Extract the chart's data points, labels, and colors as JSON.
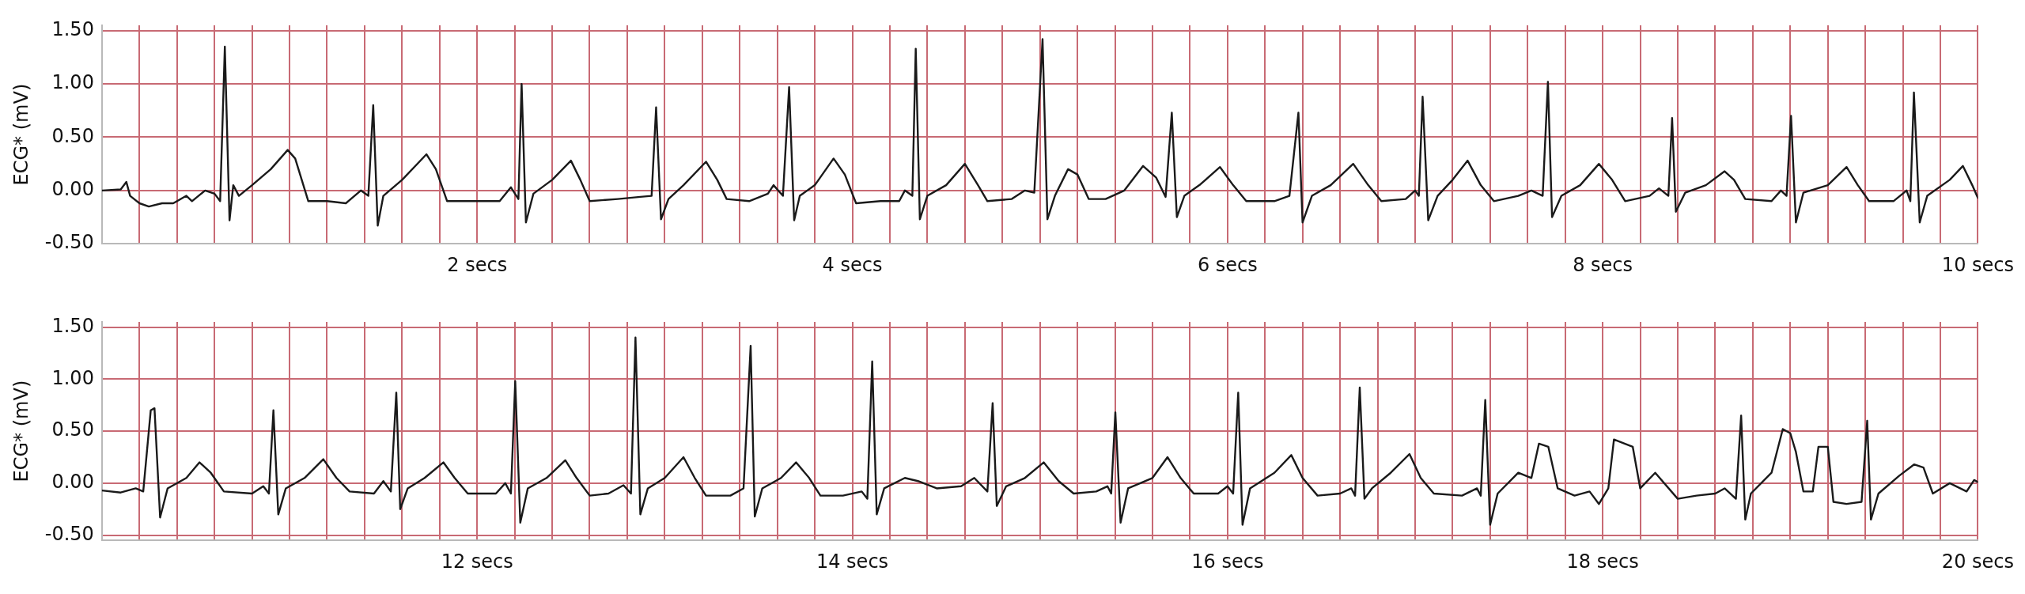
{
  "chart_data": [
    {
      "type": "line",
      "ylabel": "ECG* (mV)",
      "xlim": [
        0,
        10
      ],
      "ylim": [
        -0.5,
        1.55
      ],
      "grid": true,
      "yticks": [
        {
          "value": -0.5,
          "label": "-0.50"
        },
        {
          "value": 0,
          "label": "0.00"
        },
        {
          "value": 0.5,
          "label": "0.50"
        },
        {
          "value": 1,
          "label": "1.00"
        },
        {
          "value": 1.5,
          "label": "1.50"
        }
      ],
      "xticks": [
        {
          "value": 0,
          "label": null
        },
        {
          "value": 0.2,
          "label": null
        },
        {
          "value": 0.4,
          "label": null
        },
        {
          "value": 0.6,
          "label": null
        },
        {
          "value": 0.8,
          "label": null
        },
        {
          "value": 1,
          "label": null
        },
        {
          "value": 1.2,
          "label": null
        },
        {
          "value": 1.4,
          "label": null
        },
        {
          "value": 1.6,
          "label": null
        },
        {
          "value": 1.8,
          "label": null
        },
        {
          "value": 2,
          "label": "2 secs"
        },
        {
          "value": 2.2,
          "label": null
        },
        {
          "value": 2.4,
          "label": null
        },
        {
          "value": 2.6,
          "label": null
        },
        {
          "value": 2.8,
          "label": null
        },
        {
          "value": 3,
          "label": null
        },
        {
          "value": 3.2,
          "label": null
        },
        {
          "value": 3.4,
          "label": null
        },
        {
          "value": 3.6,
          "label": null
        },
        {
          "value": 3.8,
          "label": null
        },
        {
          "value": 4,
          "label": "4 secs"
        },
        {
          "value": 4.2,
          "label": null
        },
        {
          "value": 4.4,
          "label": null
        },
        {
          "value": 4.6,
          "label": null
        },
        {
          "value": 4.8,
          "label": null
        },
        {
          "value": 5,
          "label": null
        },
        {
          "value": 5.2,
          "label": null
        },
        {
          "value": 5.4,
          "label": null
        },
        {
          "value": 5.6,
          "label": null
        },
        {
          "value": 5.8,
          "label": null
        },
        {
          "value": 6,
          "label": "6 secs"
        },
        {
          "value": 6.2,
          "label": null
        },
        {
          "value": 6.4,
          "label": null
        },
        {
          "value": 6.6,
          "label": null
        },
        {
          "value": 6.8,
          "label": null
        },
        {
          "value": 7,
          "label": null
        },
        {
          "value": 7.2,
          "label": null
        },
        {
          "value": 7.4,
          "label": null
        },
        {
          "value": 7.6,
          "label": null
        },
        {
          "value": 7.8,
          "label": null
        },
        {
          "value": 8,
          "label": "8 secs"
        },
        {
          "value": 8.2,
          "label": null
        },
        {
          "value": 8.4,
          "label": null
        },
        {
          "value": 8.6,
          "label": null
        },
        {
          "value": 8.8,
          "label": null
        },
        {
          "value": 9,
          "label": null
        },
        {
          "value": 9.2,
          "label": null
        },
        {
          "value": 9.4,
          "label": null
        },
        {
          "value": 9.6,
          "label": null
        },
        {
          "value": 9.8,
          "label": null
        },
        {
          "value": 10,
          "label": "10 secs"
        }
      ],
      "series": [
        {
          "color": "#1a1a1a",
          "x": [
            0,
            0.1,
            0.13,
            0.15,
            0.2,
            0.25,
            0.32,
            0.38,
            0.45,
            0.48,
            0.55,
            0.6,
            0.63,
            0.655,
            0.68,
            0.7,
            0.73,
            0.8,
            0.9,
            0.99,
            1.03,
            1.1,
            1.2,
            1.3,
            1.38,
            1.42,
            1.446,
            1.47,
            1.5,
            1.6,
            1.73,
            1.78,
            1.84,
            2,
            2.12,
            2.18,
            2.22,
            2.237,
            2.26,
            2.3,
            2.4,
            2.5,
            2.55,
            2.6,
            2.75,
            2.87,
            2.93,
            2.954,
            2.98,
            3.02,
            3.1,
            3.22,
            3.28,
            3.33,
            3.45,
            3.55,
            3.58,
            3.63,
            3.663,
            3.69,
            3.72,
            3.8,
            3.9,
            3.96,
            4.02,
            4.15,
            4.25,
            4.28,
            4.32,
            4.338,
            4.36,
            4.4,
            4.5,
            4.6,
            4.67,
            4.72,
            4.85,
            4.92,
            4.97,
            5.014,
            5.04,
            5.08,
            5.15,
            5.2,
            5.26,
            5.35,
            5.45,
            5.55,
            5.62,
            5.67,
            5.703,
            5.73,
            5.77,
            5.85,
            5.96,
            6.03,
            6.1,
            6.25,
            6.33,
            6.378,
            6.4,
            6.45,
            6.55,
            6.67,
            6.75,
            6.82,
            6.95,
            7,
            7.02,
            7.04,
            7.07,
            7.12,
            7.2,
            7.28,
            7.35,
            7.42,
            7.55,
            7.62,
            7.68,
            7.708,
            7.73,
            7.78,
            7.88,
            7.98,
            8.05,
            8.12,
            8.25,
            8.3,
            8.35,
            8.37,
            8.39,
            8.44,
            8.55,
            8.65,
            8.7,
            8.76,
            8.9,
            8.95,
            8.98,
            9.004,
            9.03,
            9.07,
            9.2,
            9.3,
            9.36,
            9.42,
            9.55,
            9.62,
            9.64,
            9.659,
            9.69,
            9.73,
            9.85,
            9.92,
            9.97,
            10
          ],
          "values": [
            0,
            0.01,
            0.08,
            -0.05,
            -0.12,
            -0.15,
            -0.12,
            -0.12,
            -0.05,
            -0.1,
            0,
            -0.03,
            -0.1,
            1.35,
            -0.28,
            0.05,
            -0.05,
            0.05,
            0.2,
            0.38,
            0.3,
            -0.1,
            -0.1,
            -0.12,
            0,
            -0.05,
            0.8,
            -0.33,
            -0.05,
            0.1,
            0.34,
            0.2,
            -0.1,
            -0.1,
            -0.1,
            0.03,
            -0.08,
            1,
            -0.3,
            -0.03,
            0.1,
            0.28,
            0.1,
            -0.1,
            -0.08,
            -0.06,
            -0.05,
            0.78,
            -0.27,
            -0.08,
            0.05,
            0.27,
            0.1,
            -0.08,
            -0.1,
            -0.03,
            0.05,
            -0.05,
            0.97,
            -0.28,
            -0.05,
            0.05,
            0.3,
            0.15,
            -0.12,
            -0.1,
            -0.1,
            0,
            -0.05,
            1.33,
            -0.27,
            -0.05,
            0.05,
            0.25,
            0.05,
            -0.1,
            -0.08,
            0,
            -0.02,
            1.42,
            -0.27,
            -0.05,
            0.2,
            0.15,
            -0.08,
            -0.08,
            0,
            0.23,
            0.12,
            -0.06,
            0.73,
            -0.25,
            -0.05,
            0.05,
            0.22,
            0.05,
            -0.1,
            -0.1,
            -0.05,
            0.73,
            -0.3,
            -0.05,
            0.05,
            0.25,
            0.05,
            -0.1,
            -0.08,
            0,
            -0.05,
            0.88,
            -0.28,
            -0.05,
            0.1,
            0.28,
            0.05,
            -0.1,
            -0.05,
            0,
            -0.05,
            1.02,
            -0.25,
            -0.05,
            0.05,
            0.25,
            0.1,
            -0.1,
            -0.05,
            0.02,
            -0.05,
            0.68,
            -0.2,
            -0.02,
            0.05,
            0.18,
            0.1,
            -0.08,
            -0.1,
            0,
            -0.05,
            0.7,
            -0.3,
            -0.02,
            0.05,
            0.22,
            0.05,
            -0.1,
            -0.1,
            0,
            -0.1,
            0.92,
            -0.3,
            -0.05,
            0.1,
            0.23,
            0.05,
            -0.07
          ]
        }
      ]
    },
    {
      "type": "line",
      "ylabel": "ECG* (mV)",
      "xlim": [
        10,
        20
      ],
      "ylim": [
        -0.55,
        1.55
      ],
      "grid": true,
      "yticks": [
        {
          "value": -0.5,
          "label": "-0.50"
        },
        {
          "value": 0,
          "label": "0.00"
        },
        {
          "value": 0.5,
          "label": "0.50"
        },
        {
          "value": 1,
          "label": "1.00"
        },
        {
          "value": 1.5,
          "label": "1.50"
        }
      ],
      "xticks": [
        {
          "value": 10,
          "label": null
        },
        {
          "value": 10.2,
          "label": null
        },
        {
          "value": 10.4,
          "label": null
        },
        {
          "value": 10.6,
          "label": null
        },
        {
          "value": 10.8,
          "label": null
        },
        {
          "value": 11,
          "label": null
        },
        {
          "value": 11.2,
          "label": null
        },
        {
          "value": 11.4,
          "label": null
        },
        {
          "value": 11.6,
          "label": null
        },
        {
          "value": 11.8,
          "label": null
        },
        {
          "value": 12,
          "label": "12 secs"
        },
        {
          "value": 12.2,
          "label": null
        },
        {
          "value": 12.4,
          "label": null
        },
        {
          "value": 12.6,
          "label": null
        },
        {
          "value": 12.8,
          "label": null
        },
        {
          "value": 13,
          "label": null
        },
        {
          "value": 13.2,
          "label": null
        },
        {
          "value": 13.4,
          "label": null
        },
        {
          "value": 13.6,
          "label": null
        },
        {
          "value": 13.8,
          "label": null
        },
        {
          "value": 14,
          "label": "14 secs"
        },
        {
          "value": 14.2,
          "label": null
        },
        {
          "value": 14.4,
          "label": null
        },
        {
          "value": 14.6,
          "label": null
        },
        {
          "value": 14.8,
          "label": null
        },
        {
          "value": 15,
          "label": null
        },
        {
          "value": 15.2,
          "label": null
        },
        {
          "value": 15.4,
          "label": null
        },
        {
          "value": 15.6,
          "label": null
        },
        {
          "value": 15.8,
          "label": null
        },
        {
          "value": 16,
          "label": "16 secs"
        },
        {
          "value": 16.2,
          "label": null
        },
        {
          "value": 16.4,
          "label": null
        },
        {
          "value": 16.6,
          "label": null
        },
        {
          "value": 16.8,
          "label": null
        },
        {
          "value": 17,
          "label": null
        },
        {
          "value": 17.2,
          "label": null
        },
        {
          "value": 17.4,
          "label": null
        },
        {
          "value": 17.6,
          "label": null
        },
        {
          "value": 17.8,
          "label": null
        },
        {
          "value": 18,
          "label": "18 secs"
        },
        {
          "value": 18.2,
          "label": null
        },
        {
          "value": 18.4,
          "label": null
        },
        {
          "value": 18.6,
          "label": null
        },
        {
          "value": 18.8,
          "label": null
        },
        {
          "value": 19,
          "label": null
        },
        {
          "value": 19.2,
          "label": null
        },
        {
          "value": 19.4,
          "label": null
        },
        {
          "value": 19.6,
          "label": null
        },
        {
          "value": 19.8,
          "label": null
        },
        {
          "value": 20,
          "label": "20 secs"
        }
      ],
      "series": [
        {
          "color": "#1a1a1a",
          "x": [
            10,
            10.1,
            10.18,
            10.22,
            10.26,
            10.28,
            10.31,
            10.35,
            10.45,
            10.52,
            10.58,
            10.65,
            10.8,
            10.86,
            10.89,
            10.914,
            10.94,
            10.98,
            11.08,
            11.18,
            11.25,
            11.32,
            11.45,
            11.5,
            11.54,
            11.569,
            11.59,
            11.63,
            11.72,
            11.82,
            11.88,
            11.95,
            12.1,
            12.15,
            12.18,
            12.203,
            12.23,
            12.27,
            12.37,
            12.47,
            12.53,
            12.6,
            12.7,
            12.78,
            12.82,
            12.844,
            12.87,
            12.91,
            13,
            13.1,
            13.16,
            13.22,
            13.35,
            13.42,
            13.458,
            13.48,
            13.52,
            13.62,
            13.7,
            13.77,
            13.83,
            13.95,
            14.05,
            14.08,
            14.106,
            14.13,
            14.17,
            14.28,
            14.35,
            14.45,
            14.58,
            14.65,
            14.72,
            14.748,
            14.77,
            14.82,
            14.92,
            15.02,
            15.1,
            15.18,
            15.3,
            15.36,
            15.38,
            15.402,
            15.43,
            15.47,
            15.6,
            15.68,
            15.75,
            15.82,
            15.95,
            16,
            16.03,
            16.057,
            16.08,
            16.12,
            16.25,
            16.34,
            16.4,
            16.48,
            16.6,
            16.66,
            16.68,
            16.705,
            16.73,
            16.77,
            16.87,
            16.97,
            17.03,
            17.1,
            17.25,
            17.33,
            17.35,
            17.374,
            17.4,
            17.44,
            17.55,
            17.62,
            17.66,
            17.71,
            17.76,
            17.85,
            17.93,
            17.98,
            18.03,
            18.06,
            18.16,
            18.2,
            18.28,
            18.4,
            18.5,
            18.6,
            18.65,
            18.71,
            18.738,
            18.76,
            18.79,
            18.9,
            18.96,
            19,
            19.03,
            19.07,
            19.12,
            19.15,
            19.2,
            19.23,
            19.3,
            19.38,
            19.41,
            19.43,
            19.47,
            19.58,
            19.66,
            19.71,
            19.76,
            19.85,
            19.94,
            19.98,
            20
          ],
          "values": [
            -0.07,
            -0.09,
            -0.05,
            -0.08,
            0.7,
            0.72,
            -0.33,
            -0.05,
            0.05,
            0.2,
            0.1,
            -0.08,
            -0.1,
            -0.03,
            -0.1,
            0.7,
            -0.3,
            -0.05,
            0.05,
            0.23,
            0.05,
            -0.08,
            -0.1,
            0.02,
            -0.08,
            0.87,
            -0.25,
            -0.05,
            0.05,
            0.2,
            0.05,
            -0.1,
            -0.1,
            0,
            -0.1,
            0.98,
            -0.38,
            -0.05,
            0.05,
            0.22,
            0.05,
            -0.12,
            -0.1,
            -0.02,
            -0.1,
            1.4,
            -0.3,
            -0.05,
            0.05,
            0.25,
            0.05,
            -0.12,
            -0.12,
            -0.05,
            1.32,
            -0.32,
            -0.05,
            0.05,
            0.2,
            0.05,
            -0.12,
            -0.12,
            -0.08,
            -0.15,
            1.17,
            -0.3,
            -0.05,
            0.05,
            0.02,
            -0.05,
            -0.03,
            0.05,
            -0.08,
            0.77,
            -0.22,
            -0.03,
            0.05,
            0.2,
            0.02,
            -0.1,
            -0.08,
            -0.03,
            -0.1,
            0.68,
            -0.38,
            -0.05,
            0.05,
            0.25,
            0.05,
            -0.1,
            -0.1,
            -0.03,
            -0.1,
            0.87,
            -0.4,
            -0.05,
            0.1,
            0.27,
            0.05,
            -0.12,
            -0.1,
            -0.05,
            -0.12,
            0.92,
            -0.15,
            -0.05,
            0.1,
            0.28,
            0.05,
            -0.1,
            -0.12,
            -0.05,
            -0.12,
            0.8,
            -0.4,
            -0.1,
            0.1,
            0.05,
            0.38,
            0.35,
            -0.05,
            -0.12,
            -0.08,
            -0.2,
            -0.05,
            0.42,
            0.35,
            -0.05,
            0.1,
            -0.15,
            -0.12,
            -0.1,
            -0.05,
            -0.15,
            0.65,
            -0.35,
            -0.1,
            0.1,
            0.52,
            0.48,
            0.3,
            -0.08,
            -0.08,
            0.35,
            0.35,
            -0.18,
            -0.2,
            -0.18,
            0.6,
            -0.35,
            -0.1,
            0.07,
            0.18,
            0.15,
            -0.1,
            0,
            -0.08,
            0.03,
            0.01
          ]
        }
      ]
    }
  ]
}
